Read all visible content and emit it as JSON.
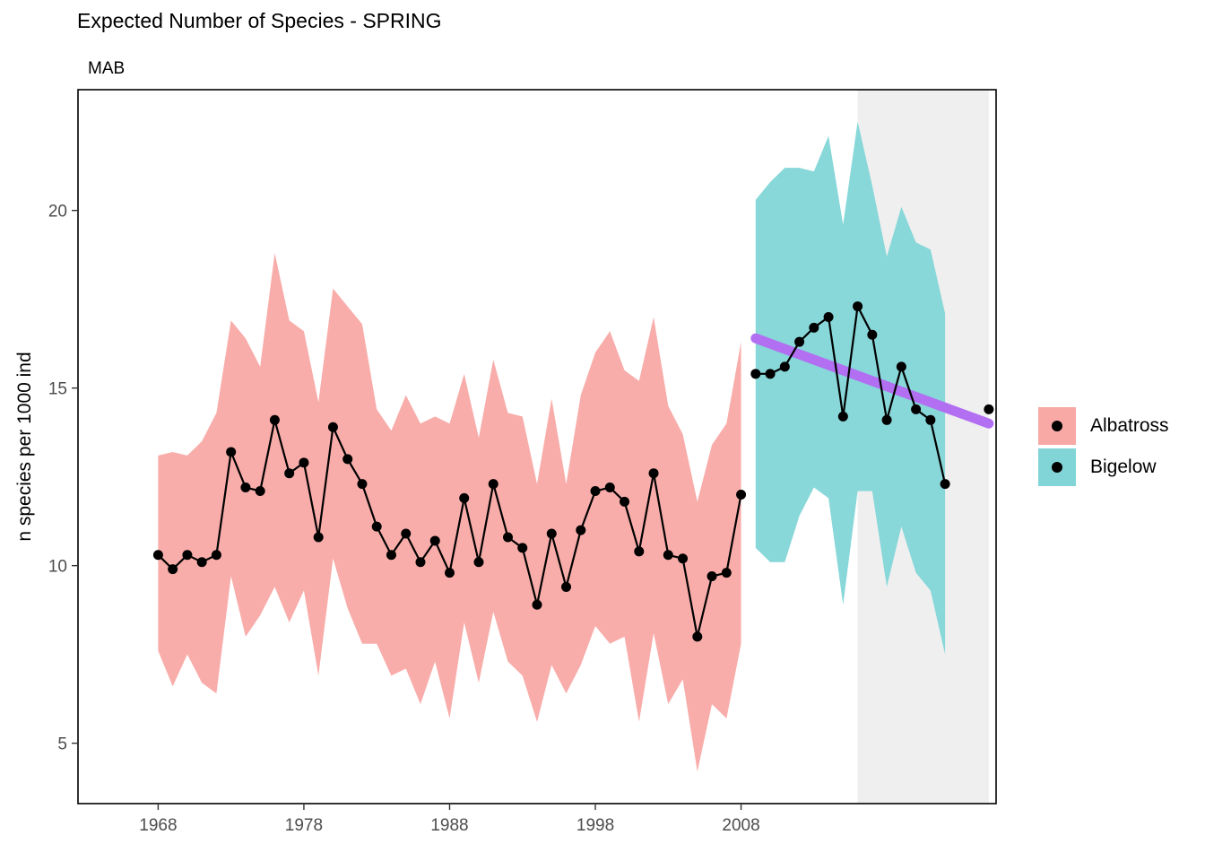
{
  "title": "Expected Number of Species - SPRING",
  "subtitle": "MAB",
  "chart_data": {
    "type": "line",
    "title": "Expected Number of Species - SPRING",
    "subtitle": "MAB",
    "xlabel": "",
    "ylabel": "n species per 1000 ind",
    "xlim": [
      1962.5,
      2025.5
    ],
    "ylim": [
      3.3,
      23.4
    ],
    "x_ticks": [
      1968,
      1978,
      1988,
      1998,
      2008
    ],
    "y_ticks": [
      5,
      10,
      15,
      20
    ],
    "grid": false,
    "legend_position": "right",
    "shaded_region": {
      "x_start": 2016,
      "x_end": 2025,
      "color": "#efefef"
    },
    "series": [
      {
        "name": "Albatross",
        "color": "#f8766d",
        "ribbon_color": "#f8a9a5",
        "x": [
          1968,
          1969,
          1970,
          1971,
          1972,
          1973,
          1974,
          1975,
          1976,
          1977,
          1978,
          1979,
          1980,
          1981,
          1982,
          1983,
          1984,
          1985,
          1986,
          1987,
          1988,
          1989,
          1990,
          1991,
          1992,
          1993,
          1994,
          1995,
          1996,
          1997,
          1998,
          1999,
          2000,
          2001,
          2002,
          2003,
          2004,
          2005,
          2006,
          2007,
          2008
        ],
        "values": [
          10.3,
          9.9,
          10.3,
          10.1,
          10.3,
          13.2,
          12.2,
          12.1,
          14.1,
          12.6,
          12.9,
          10.8,
          13.9,
          13.0,
          12.3,
          11.1,
          10.3,
          10.9,
          10.1,
          10.7,
          9.8,
          11.9,
          10.1,
          12.3,
          10.8,
          10.5,
          8.9,
          10.9,
          9.4,
          11.0,
          12.1,
          12.2,
          11.8,
          10.4,
          12.6,
          10.3,
          10.2,
          8.0,
          9.7,
          9.8,
          12.0
        ],
        "lower": [
          7.6,
          6.6,
          7.5,
          6.7,
          6.4,
          9.7,
          8.0,
          8.6,
          9.4,
          8.4,
          9.3,
          6.9,
          10.2,
          8.8,
          7.8,
          7.8,
          6.9,
          7.1,
          6.1,
          7.3,
          5.7,
          8.4,
          6.7,
          8.7,
          7.3,
          6.9,
          5.6,
          7.2,
          6.4,
          7.2,
          8.3,
          7.8,
          8.0,
          5.6,
          8.1,
          6.1,
          6.8,
          4.2,
          6.1,
          5.7,
          7.8
        ],
        "upper": [
          13.1,
          13.2,
          13.1,
          13.5,
          14.3,
          16.9,
          16.4,
          15.6,
          18.8,
          16.9,
          16.6,
          14.6,
          17.8,
          17.3,
          16.8,
          14.4,
          13.8,
          14.8,
          14.0,
          14.2,
          14.0,
          15.4,
          13.6,
          15.8,
          14.3,
          14.2,
          12.3,
          14.7,
          12.3,
          14.8,
          16.0,
          16.6,
          15.5,
          15.2,
          17.0,
          14.5,
          13.7,
          11.8,
          13.4,
          14.0,
          16.3
        ]
      },
      {
        "name": "Bigelow",
        "color": "#00bfc4",
        "ribbon_color": "#82d5d7",
        "x": [
          2009,
          2010,
          2011,
          2012,
          2013,
          2014,
          2015,
          2016,
          2017,
          2018,
          2019,
          2020,
          2021,
          2022
        ],
        "values": [
          15.4,
          15.4,
          15.6,
          16.3,
          16.7,
          17.0,
          14.2,
          17.3,
          16.5,
          14.1,
          15.6,
          14.4,
          14.1,
          12.3
        ],
        "lower": [
          10.5,
          10.1,
          10.1,
          11.4,
          12.2,
          11.9,
          8.9,
          12.1,
          12.1,
          9.4,
          11.1,
          9.8,
          9.3,
          7.5
        ],
        "upper": [
          20.3,
          20.8,
          21.2,
          21.2,
          21.1,
          22.1,
          19.6,
          22.5,
          20.7,
          18.7,
          20.1,
          19.1,
          18.9,
          17.1
        ]
      }
    ],
    "trend": {
      "color": "#b26ff1",
      "x": [
        2009,
        2025
      ],
      "values": [
        16.4,
        14.0
      ]
    },
    "extra_point": {
      "x": 2025,
      "value": 14.4
    }
  }
}
